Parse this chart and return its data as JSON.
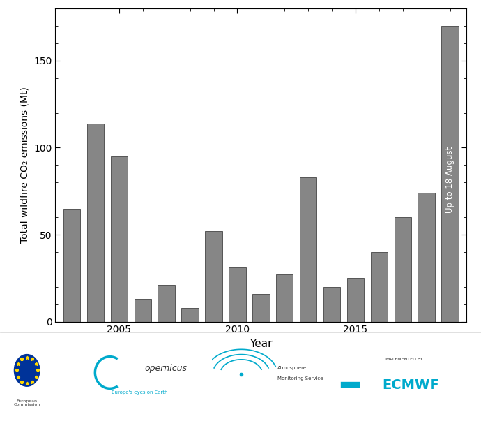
{
  "years": [
    2003,
    2004,
    2005,
    2006,
    2007,
    2008,
    2009,
    2010,
    2011,
    2012,
    2013,
    2014,
    2015,
    2016,
    2017,
    2018,
    2019
  ],
  "values": [
    65,
    114,
    95,
    13,
    21,
    8,
    52,
    31,
    16,
    27,
    83,
    20,
    25,
    40,
    60,
    74,
    170
  ],
  "bar_color": "#868686",
  "bar_edge_color": "#555555",
  "xlabel": "Year",
  "ylabel": "Total wildfire CO₂ emissions (Mt)",
  "ylim": [
    0,
    180
  ],
  "yticks": [
    0,
    50,
    100,
    150
  ],
  "xticks": [
    2005,
    2010,
    2015
  ],
  "xlim": [
    2002.3,
    2019.7
  ],
  "annotation_text": "Up to 18 August",
  "background_color": "#ffffff",
  "bar_width": 0.72,
  "annotation_fontsize": 8.5,
  "xlabel_fontsize": 11,
  "ylabel_fontsize": 10,
  "tick_fontsize": 10
}
